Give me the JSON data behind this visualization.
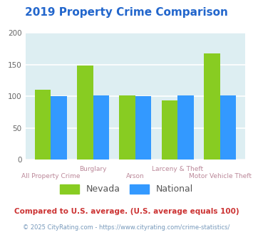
{
  "title": "2019 Property Crime Comparison",
  "title_color": "#2266cc",
  "categories_top": [
    "",
    "Burglary",
    "",
    "Larceny & Theft",
    ""
  ],
  "categories_bot": [
    "All Property Crime",
    "",
    "Arson",
    "",
    "Motor Vehicle Theft"
  ],
  "nevada_values": [
    110,
    149,
    101,
    94,
    168
  ],
  "national_values": [
    100,
    101,
    100,
    101,
    101
  ],
  "nevada_color": "#88cc22",
  "national_color": "#3399ff",
  "ylim": [
    0,
    200
  ],
  "yticks": [
    0,
    50,
    100,
    150,
    200
  ],
  "plot_bg_color": "#ddeef2",
  "fig_bg_color": "#ffffff",
  "legend_nevada": "Nevada",
  "legend_national": "National",
  "footnote": "Compared to U.S. average. (U.S. average equals 100)",
  "footnote2": "© 2025 CityRating.com - https://www.cityrating.com/crime-statistics/",
  "footnote_color": "#cc3333",
  "footnote2_color": "#7799bb",
  "grid_color": "#ffffff",
  "label_color": "#bb8899"
}
